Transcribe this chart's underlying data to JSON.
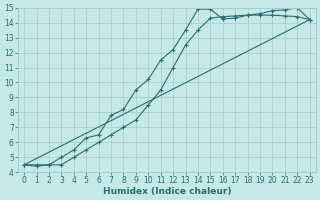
{
  "xlabel": "Humidex (Indice chaleur)",
  "xlim": [
    -0.5,
    23.5
  ],
  "ylim": [
    4,
    15
  ],
  "xticks": [
    0,
    1,
    2,
    3,
    4,
    5,
    6,
    7,
    8,
    9,
    10,
    11,
    12,
    13,
    14,
    15,
    16,
    17,
    18,
    19,
    20,
    21,
    22,
    23
  ],
  "yticks": [
    4,
    5,
    6,
    7,
    8,
    9,
    10,
    11,
    12,
    13,
    14,
    15
  ],
  "bg_color": "#c5e8e8",
  "grid_color": "#a8cccc",
  "line_color": "#2a6e6e",
  "line1_x": [
    0,
    1,
    2,
    3,
    4,
    5,
    6,
    7,
    8,
    9,
    10,
    11,
    12,
    13,
    14,
    15,
    16,
    17,
    18,
    19,
    20,
    21,
    22,
    23
  ],
  "line1_y": [
    4.5,
    4.4,
    4.5,
    5.0,
    5.5,
    6.3,
    6.5,
    7.8,
    8.2,
    9.5,
    10.2,
    11.5,
    12.2,
    13.5,
    14.9,
    14.9,
    14.25,
    14.3,
    14.5,
    14.6,
    14.8,
    14.85,
    15.0,
    14.2
  ],
  "line2_x": [
    0,
    1,
    2,
    3,
    4,
    5,
    6,
    7,
    8,
    9,
    10,
    11,
    12,
    13,
    14,
    15,
    16,
    17,
    18,
    19,
    20,
    21,
    22,
    23
  ],
  "line2_y": [
    4.5,
    4.5,
    4.5,
    4.5,
    5.0,
    5.5,
    6.0,
    6.5,
    7.0,
    7.5,
    8.5,
    9.5,
    11.0,
    12.5,
    13.5,
    14.3,
    14.4,
    14.45,
    14.5,
    14.5,
    14.5,
    14.45,
    14.4,
    14.2
  ],
  "line3_x": [
    0,
    23
  ],
  "line3_y": [
    4.5,
    14.2
  ]
}
